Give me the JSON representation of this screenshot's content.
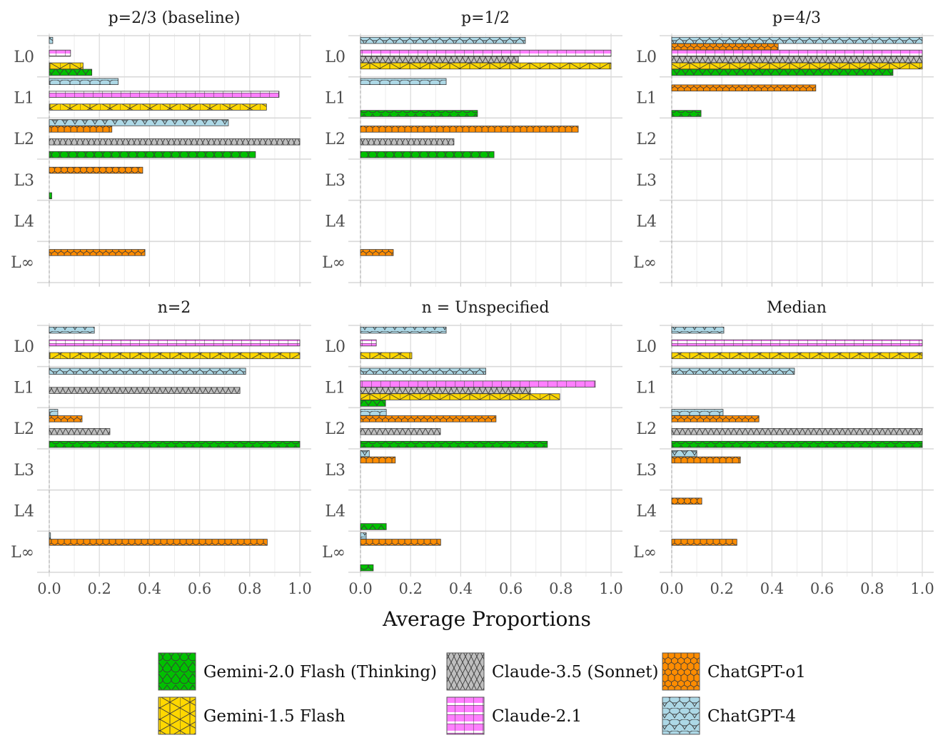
{
  "chart_data": {
    "type": "bar",
    "orientation": "horizontal",
    "layout": "facet 2x3, dodged bars",
    "xlabel": "Average Proportions",
    "ylabel": "",
    "xlim": [
      0,
      1
    ],
    "xticks": [
      "0.0",
      "0.2",
      "0.4",
      "0.6",
      "0.8",
      "1.0"
    ],
    "categories": [
      "L0",
      "L1",
      "L2",
      "L3",
      "L4",
      "L∞"
    ],
    "grid": true,
    "legend_position": "bottom",
    "series_order_in_group": [
      "ChatGPT-4",
      "ChatGPT-o1",
      "Claude-2.1",
      "Claude-3.5 (Sonnet)",
      "Gemini-1.5 Flash",
      "Gemini-2.0 Flash (Thinking)"
    ],
    "legend": [
      {
        "name": "Gemini-2.0 Flash (Thinking)",
        "color": "#00c000",
        "pattern": "circles"
      },
      {
        "name": "Claude-3.5 (Sonnet)",
        "color": "#bebebe",
        "pattern": "diamonds"
      },
      {
        "name": "ChatGPT-o1",
        "color": "#ff8c00",
        "pattern": "hexagons"
      },
      {
        "name": "Gemini-1.5 Flash",
        "color": "#ffd700",
        "pattern": "crosses"
      },
      {
        "name": "Claude-2.1",
        "color": "#ff7fff",
        "pattern": "grid"
      },
      {
        "name": "ChatGPT-4",
        "color": "#add8e6",
        "pattern": "octagons"
      }
    ],
    "panels": [
      {
        "title": "p=2/3 (baseline)",
        "series": [
          {
            "name": "ChatGPT-4",
            "values": [
              0.014,
              0.275,
              0.715,
              0,
              0,
              0
            ]
          },
          {
            "name": "ChatGPT-o1",
            "values": [
              0,
              0,
              0.25,
              0.373,
              0,
              0.382
            ]
          },
          {
            "name": "Claude-2.1",
            "values": [
              0.085,
              0.917,
              0,
              0,
              0,
              0
            ]
          },
          {
            "name": "Claude-3.5 (Sonnet)",
            "values": [
              0,
              0,
              1.0,
              0,
              0,
              0
            ]
          },
          {
            "name": "Gemini-1.5 Flash",
            "values": [
              0.135,
              0.867,
              0,
              0,
              0,
              0
            ]
          },
          {
            "name": "Gemini-2.0 Flash (Thinking)",
            "values": [
              0.17,
              0,
              0.823,
              0.01,
              0,
              0
            ]
          }
        ]
      },
      {
        "title": "p=1/2",
        "series": [
          {
            "name": "ChatGPT-4",
            "values": [
              0.658,
              0.342,
              0,
              0,
              0,
              0
            ]
          },
          {
            "name": "ChatGPT-o1",
            "values": [
              0,
              0,
              0.869,
              0,
              0,
              0.131
            ]
          },
          {
            "name": "Claude-2.1",
            "values": [
              1.0,
              0,
              0,
              0,
              0,
              0
            ]
          },
          {
            "name": "Claude-3.5 (Sonnet)",
            "values": [
              0.63,
              0,
              0.373,
              0,
              0,
              0
            ]
          },
          {
            "name": "Gemini-1.5 Flash",
            "values": [
              1.0,
              0,
              0,
              0,
              0,
              0
            ]
          },
          {
            "name": "Gemini-2.0 Flash (Thinking)",
            "values": [
              0,
              0.467,
              0.533,
              0,
              0,
              0
            ]
          }
        ]
      },
      {
        "title": "p=4/3",
        "series": [
          {
            "name": "ChatGPT-4",
            "values": [
              1.0,
              0,
              0,
              0,
              0,
              0
            ]
          },
          {
            "name": "ChatGPT-o1",
            "values": [
              0.425,
              0.575,
              0,
              0,
              0,
              0
            ]
          },
          {
            "name": "Claude-2.1",
            "values": [
              1.0,
              0,
              0,
              0,
              0,
              0
            ]
          },
          {
            "name": "Claude-3.5 (Sonnet)",
            "values": [
              1.0,
              0,
              0,
              0,
              0,
              0
            ]
          },
          {
            "name": "Gemini-1.5 Flash",
            "values": [
              1.0,
              0,
              0,
              0,
              0,
              0
            ]
          },
          {
            "name": "Gemini-2.0 Flash (Thinking)",
            "values": [
              0.883,
              0.117,
              0,
              0,
              0,
              0
            ]
          }
        ]
      },
      {
        "title": "n=2",
        "series": [
          {
            "name": "ChatGPT-4",
            "values": [
              0.18,
              0.784,
              0.034,
              0,
              0,
              0.005
            ]
          },
          {
            "name": "ChatGPT-o1",
            "values": [
              0,
              0,
              0.131,
              0,
              0,
              0.87
            ]
          },
          {
            "name": "Claude-2.1",
            "values": [
              1.0,
              0,
              0,
              0,
              0,
              0
            ]
          },
          {
            "name": "Claude-3.5 (Sonnet)",
            "values": [
              0,
              0.761,
              0.242,
              0,
              0,
              0
            ]
          },
          {
            "name": "Gemini-1.5 Flash",
            "values": [
              1.0,
              0,
              0,
              0,
              0,
              0
            ]
          },
          {
            "name": "Gemini-2.0 Flash (Thinking)",
            "values": [
              0,
              0,
              1.0,
              0,
              0,
              0
            ]
          }
        ]
      },
      {
        "title": "n = Unspecified",
        "series": [
          {
            "name": "ChatGPT-4",
            "values": [
              0.342,
              0.5,
              0.103,
              0.035,
              0,
              0.023
            ]
          },
          {
            "name": "ChatGPT-o1",
            "values": [
              0,
              0,
              0.541,
              0.139,
              0,
              0.32
            ]
          },
          {
            "name": "Claude-2.1",
            "values": [
              0.063,
              0.937,
              0,
              0,
              0,
              0
            ]
          },
          {
            "name": "Claude-3.5 (Sonnet)",
            "values": [
              0,
              0.678,
              0.319,
              0,
              0,
              0
            ]
          },
          {
            "name": "Gemini-1.5 Flash",
            "values": [
              0.205,
              0.795,
              0,
              0,
              0,
              0
            ]
          },
          {
            "name": "Gemini-2.0 Flash (Thinking)",
            "values": [
              0,
              0.1,
              0.746,
              0,
              0.103,
              0.051
            ]
          }
        ]
      },
      {
        "title": "Median",
        "series": [
          {
            "name": "ChatGPT-4",
            "values": [
              0.208,
              0.49,
              0.205,
              0.1,
              0,
              0
            ]
          },
          {
            "name": "ChatGPT-o1",
            "values": [
              0,
              0,
              0.348,
              0.274,
              0.12,
              0.26
            ]
          },
          {
            "name": "Claude-2.1",
            "values": [
              1.0,
              0,
              0,
              0,
              0,
              0
            ]
          },
          {
            "name": "Claude-3.5 (Sonnet)",
            "values": [
              0,
              0,
              1.0,
              0,
              0,
              0
            ]
          },
          {
            "name": "Gemini-1.5 Flash",
            "values": [
              1.0,
              0,
              0,
              0,
              0,
              0
            ]
          },
          {
            "name": "Gemini-2.0 Flash (Thinking)",
            "values": [
              0,
              0,
              1.0,
              0,
              0,
              0
            ]
          }
        ]
      }
    ]
  }
}
